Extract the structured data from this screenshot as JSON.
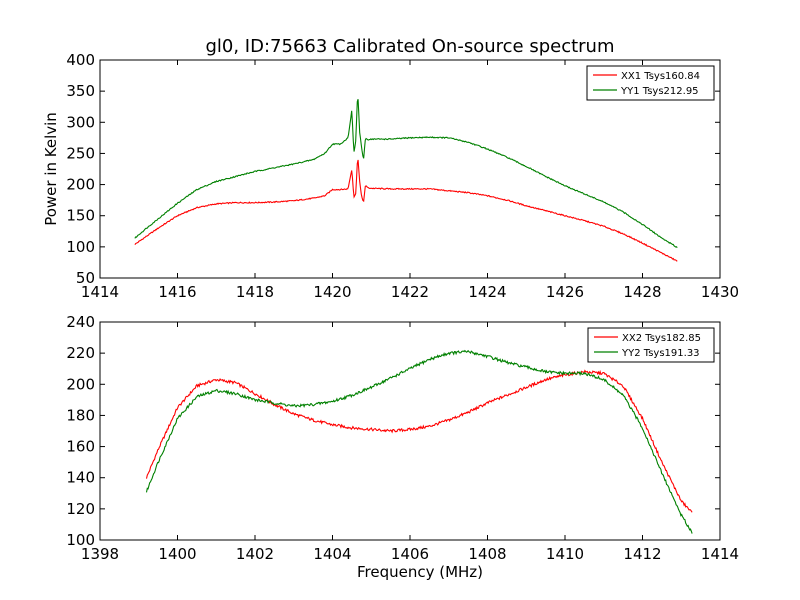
{
  "figure": {
    "title": "gl0, ID:75663 Calibrated On-source spectrum"
  },
  "chart_data": [
    {
      "type": "line",
      "title": "gl0, ID:75663 Calibrated On-source spectrum",
      "xlabel": "",
      "ylabel": "Power in Kelvin",
      "xlim": [
        1414,
        1430
      ],
      "ylim": [
        50,
        400
      ],
      "xticks": [
        1414,
        1416,
        1418,
        1420,
        1422,
        1424,
        1426,
        1428,
        1430
      ],
      "yticks": [
        50,
        100,
        150,
        200,
        250,
        300,
        350,
        400
      ],
      "grid": false,
      "legend_position": "top-right",
      "series": [
        {
          "name": "XX1 Tsys160.84",
          "color": "#ff0000",
          "x": [
            1414.9,
            1415.2,
            1415.5,
            1416.0,
            1416.5,
            1417.0,
            1417.5,
            1418.0,
            1418.5,
            1419.0,
            1419.5,
            1419.8,
            1420.0,
            1420.2,
            1420.4,
            1420.5,
            1420.55,
            1420.6,
            1420.65,
            1420.7,
            1420.75,
            1420.8,
            1420.85,
            1420.9,
            1421.0,
            1421.5,
            1422.0,
            1422.5,
            1423.0,
            1423.5,
            1424.0,
            1424.5,
            1425.0,
            1425.5,
            1426.0,
            1426.5,
            1427.0,
            1427.5,
            1428.0,
            1428.5,
            1428.9
          ],
          "values": [
            104,
            117,
            130,
            150,
            163,
            169,
            171,
            171,
            172,
            174,
            178,
            182,
            192,
            192,
            193,
            225,
            180,
            185,
            248,
            205,
            182,
            170,
            200,
            195,
            194,
            193,
            193,
            193,
            190,
            187,
            182,
            175,
            166,
            158,
            150,
            142,
            133,
            121,
            106,
            90,
            77
          ]
        },
        {
          "name": "YY1 Tsys212.95",
          "color": "#008000",
          "x": [
            1414.9,
            1415.2,
            1415.5,
            1416.0,
            1416.5,
            1417.0,
            1417.5,
            1418.0,
            1418.5,
            1419.0,
            1419.5,
            1419.8,
            1420.0,
            1420.2,
            1420.4,
            1420.5,
            1420.55,
            1420.6,
            1420.65,
            1420.7,
            1420.75,
            1420.8,
            1420.85,
            1420.9,
            1421.0,
            1421.5,
            1422.0,
            1422.5,
            1423.0,
            1423.5,
            1424.0,
            1424.5,
            1425.0,
            1425.5,
            1426.0,
            1426.5,
            1427.0,
            1427.5,
            1428.0,
            1428.5,
            1428.9
          ],
          "values": [
            114,
            130,
            145,
            170,
            192,
            205,
            213,
            221,
            227,
            233,
            240,
            250,
            265,
            265,
            275,
            320,
            250,
            270,
            350,
            285,
            260,
            238,
            275,
            272,
            273,
            273,
            275,
            276,
            275,
            268,
            257,
            244,
            229,
            213,
            198,
            185,
            172,
            156,
            136,
            114,
            99
          ]
        }
      ]
    },
    {
      "type": "line",
      "title": "",
      "xlabel": "Frequency (MHz)",
      "ylabel": "",
      "xlim": [
        1398,
        1414
      ],
      "ylim": [
        100,
        240
      ],
      "xticks": [
        1398,
        1400,
        1402,
        1404,
        1406,
        1408,
        1410,
        1412,
        1414
      ],
      "yticks": [
        100,
        120,
        140,
        160,
        180,
        200,
        220,
        240
      ],
      "grid": false,
      "legend_position": "top-right",
      "series": [
        {
          "name": "XX2 Tsys182.85",
          "color": "#ff0000",
          "x": [
            1399.2,
            1399.5,
            1400.0,
            1400.5,
            1401.0,
            1401.5,
            1402.0,
            1402.5,
            1403.0,
            1403.5,
            1404.0,
            1404.5,
            1405.0,
            1405.5,
            1406.0,
            1406.5,
            1407.0,
            1407.5,
            1408.0,
            1408.5,
            1409.0,
            1409.5,
            1410.0,
            1410.5,
            1411.0,
            1411.5,
            1412.0,
            1412.5,
            1413.0,
            1413.3
          ],
          "values": [
            140,
            158,
            185,
            199,
            203,
            201,
            194,
            187,
            181,
            177,
            174,
            172,
            171,
            170,
            171,
            173,
            177,
            182,
            188,
            193,
            198,
            203,
            206,
            208,
            207,
            199,
            178,
            150,
            125,
            117
          ]
        },
        {
          "name": "YY2 Tsys191.33",
          "color": "#008000",
          "x": [
            1399.2,
            1399.5,
            1400.0,
            1400.5,
            1401.0,
            1401.5,
            1402.0,
            1402.5,
            1403.0,
            1403.5,
            1404.0,
            1404.5,
            1405.0,
            1405.5,
            1406.0,
            1406.5,
            1407.0,
            1407.5,
            1408.0,
            1408.5,
            1409.0,
            1409.5,
            1410.0,
            1410.5,
            1411.0,
            1411.5,
            1412.0,
            1412.5,
            1413.0,
            1413.3
          ],
          "values": [
            131,
            150,
            178,
            192,
            196,
            194,
            190,
            188,
            186,
            187,
            189,
            193,
            198,
            204,
            210,
            216,
            220,
            221,
            218,
            214,
            211,
            208,
            207,
            207,
            203,
            193,
            172,
            143,
            116,
            104
          ]
        }
      ]
    }
  ]
}
